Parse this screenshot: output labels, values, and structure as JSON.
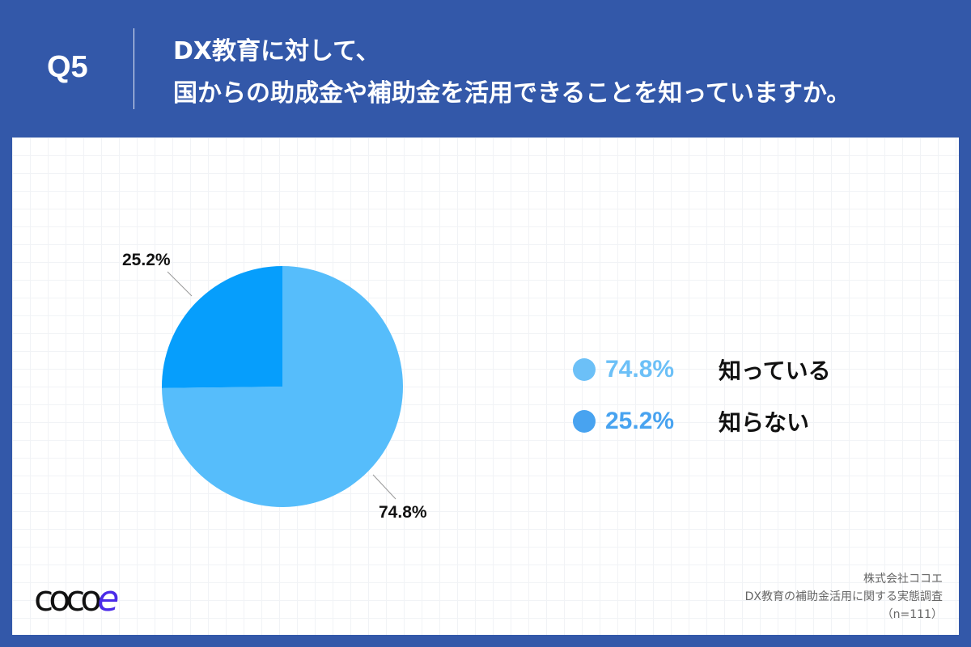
{
  "header": {
    "question_number": "Q5",
    "title_line1": "DX教育に対して、",
    "title_line2": "国からの助成金や補助金を活用できることを知っていますか。"
  },
  "chart_data": {
    "type": "pie",
    "title": "DX教育に対して、国からの助成金や補助金を活用できることを知っていますか。",
    "categories": [
      "知っている",
      "知らない"
    ],
    "values": [
      74.8,
      25.2
    ],
    "unit": "%",
    "colors": [
      "#56bdfb",
      "#069efc"
    ],
    "data_labels": [
      "74.8%",
      "25.2%"
    ],
    "legend_position": "right",
    "n": 111
  },
  "pie_labels": {
    "known": "74.8%",
    "unknown": "25.2%"
  },
  "legend": {
    "items": [
      {
        "pct": "74.8%",
        "label": "知っている",
        "color": "#6cc0f7"
      },
      {
        "pct": "25.2%",
        "label": "知らない",
        "color": "#48a3f0"
      }
    ]
  },
  "footer": {
    "logo_prefix": "coco",
    "logo_suffix": "e",
    "company": "株式会社ココエ",
    "survey_name": "DX教育の補助金活用に関する実態調査",
    "sample_size": "（n=111）"
  }
}
